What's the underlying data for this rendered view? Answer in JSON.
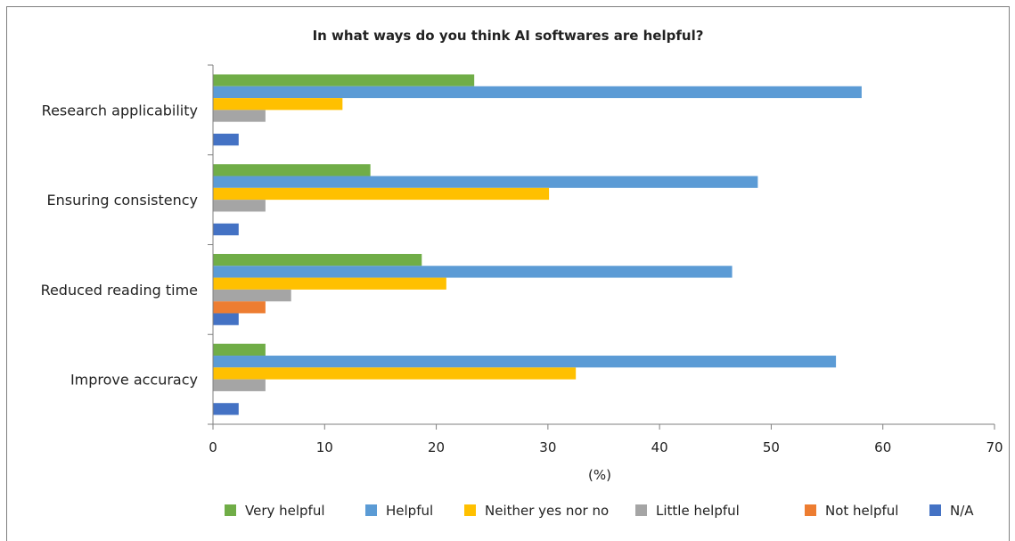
{
  "chart_data": {
    "type": "bar",
    "orientation": "horizontal",
    "title": "In what ways do you think AI softwares are helpful?",
    "xlabel": "(%)",
    "ylabel": "",
    "xlim": [
      0,
      70
    ],
    "xticks": [
      "0",
      "10",
      "20",
      "30",
      "40",
      "50",
      "60",
      "70"
    ],
    "grid": false,
    "legend_position": "bottom",
    "categories": [
      "Research applicability",
      "Ensuring consistency",
      "Reduced reading time",
      "Improve accuracy"
    ],
    "series": [
      {
        "name": "Very helpful",
        "color": "#70ad47",
        "values": [
          23.4,
          14.1,
          18.7,
          4.7
        ]
      },
      {
        "name": "Helpful",
        "color": "#5b9bd5",
        "values": [
          58.1,
          48.8,
          46.5,
          55.8
        ]
      },
      {
        "name": "Neither yes nor no",
        "color": "#ffc000",
        "values": [
          11.6,
          30.1,
          20.9,
          32.5
        ]
      },
      {
        "name": "Little helpful",
        "color": "#a5a5a5",
        "values": [
          4.7,
          4.7,
          7.0,
          4.7
        ]
      },
      {
        "name": "Not helpful",
        "color": "#ed7d31",
        "values": [
          0,
          0,
          4.7,
          0
        ]
      },
      {
        "name": "N/A",
        "color": "#4472c4",
        "values": [
          2.3,
          2.3,
          2.3,
          2.3
        ]
      }
    ]
  }
}
